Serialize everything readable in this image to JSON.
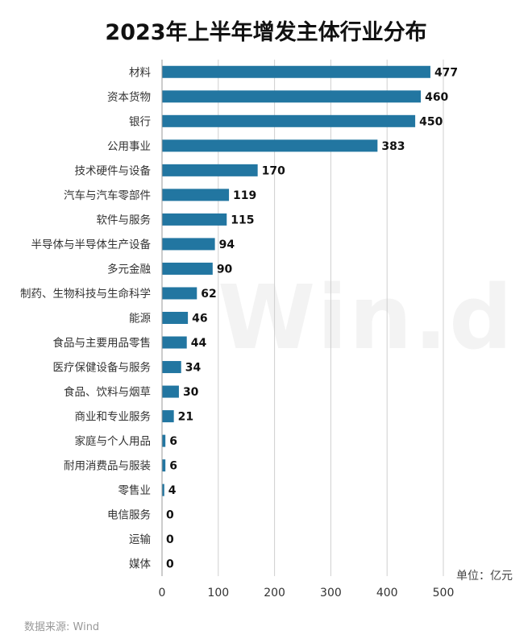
{
  "title": "2023年上半年增发主体行业分布",
  "unit_label": "单位：亿元",
  "source": "数据来源: Wind",
  "watermark": "Win.d",
  "colors": {
    "bar": "#2276a1",
    "grid": "#cfcfcf",
    "axis": "#9a9a9a"
  },
  "chart_data": {
    "type": "bar",
    "orientation": "horizontal",
    "title": "2023年上半年增发主体行业分布",
    "categories": [
      "材料",
      "资本货物",
      "银行",
      "公用事业",
      "技术硬件与设备",
      "汽车与汽车零部件",
      "软件与服务",
      "半导体与半导体生产设备",
      "多元金融",
      "制药、生物科技与生命科学",
      "能源",
      "食品与主要用品零售",
      "医疗保健设备与服务",
      "食品、饮料与烟草",
      "商业和专业服务",
      "家庭与个人用品",
      "耐用消费品与服装",
      "零售业",
      "电信服务",
      "运输",
      "媒体"
    ],
    "values": [
      477,
      460,
      450,
      383,
      170,
      119,
      115,
      94,
      90,
      62,
      46,
      44,
      34,
      30,
      21,
      6,
      6,
      4,
      0,
      0,
      0
    ],
    "xlim": [
      0,
      500
    ],
    "xticks": [
      0,
      100,
      200,
      300,
      400,
      500
    ],
    "xlabel": "",
    "ylabel": "",
    "unit": "单位：亿元",
    "grid": true,
    "data_labels": true
  }
}
